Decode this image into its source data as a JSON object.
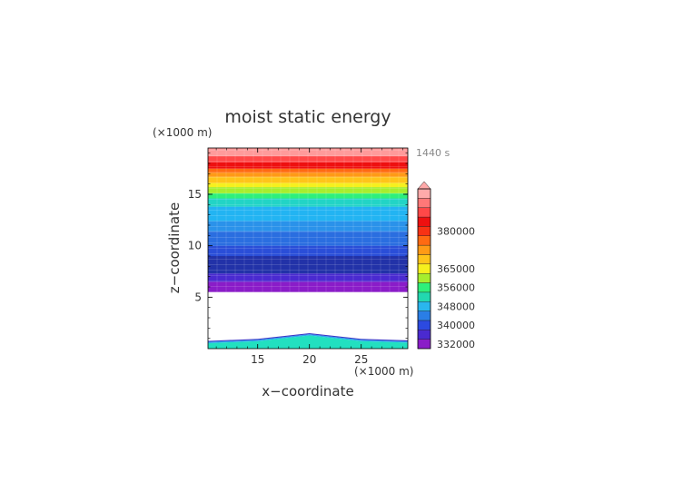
{
  "chart_data": {
    "type": "heatmap",
    "title": "moist static energy",
    "time_label": "1440 s",
    "xlabel": "x−coordinate",
    "ylabel": "z−coordinate",
    "x_unit": "(×1000 m)",
    "y_unit": "(×1000 m)",
    "xlim": [
      10.2,
      29.5
    ],
    "ylim": [
      0,
      19.5
    ],
    "x_ticks": [
      15,
      20,
      25
    ],
    "x_tick_labels": [
      "15",
      "20",
      "25"
    ],
    "y_ticks": [
      5,
      10,
      15
    ],
    "y_tick_labels": [
      "5",
      "10",
      "15"
    ],
    "colorbar": {
      "colors": [
        "#8a1cc8",
        "#4a2ad0",
        "#2c4ae0",
        "#2a7ee6",
        "#2ab6ee",
        "#22d8b0",
        "#2ef07a",
        "#a6ee2e",
        "#f6f01e",
        "#ffc41a",
        "#ff9a16",
        "#ff6a12",
        "#f83214",
        "#ee1010",
        "#ff4848",
        "#ff7878",
        "#ffaaaa"
      ],
      "labels": [
        "332000",
        "340000",
        "348000",
        "356000",
        "365000",
        "380000"
      ],
      "label_positions": [
        0.5,
        2.5,
        4.5,
        6.5,
        8.5,
        12.5
      ],
      "extend_top": true
    },
    "upper_layer": {
      "z_range": [
        5.5,
        19.5
      ],
      "bands": [
        {
          "z": [
            5.5,
            6.5
          ],
          "color": "#8a1cc8"
        },
        {
          "z": [
            6.5,
            7.3
          ],
          "color": "#4a2ad0"
        },
        {
          "z": [
            7.3,
            9.0
          ],
          "color": "#2232a8"
        },
        {
          "z": [
            9.0,
            10.0
          ],
          "color": "#2a4ed8"
        },
        {
          "z": [
            10.0,
            11.4
          ],
          "color": "#2a6ee0"
        },
        {
          "z": [
            11.4,
            12.4
          ],
          "color": "#2a92ea"
        },
        {
          "z": [
            12.4,
            13.8
          ],
          "color": "#22b4f2"
        },
        {
          "z": [
            13.8,
            14.6
          ],
          "color": "#22d4c6"
        },
        {
          "z": [
            14.6,
            15.1
          ],
          "color": "#2ef07a"
        },
        {
          "z": [
            15.1,
            15.7
          ],
          "color": "#a6ee2e"
        },
        {
          "z": [
            15.7,
            16.1
          ],
          "color": "#f6f01e"
        },
        {
          "z": [
            16.1,
            16.7
          ],
          "color": "#ffc41a"
        },
        {
          "z": [
            16.7,
            17.1
          ],
          "color": "#ff9a16"
        },
        {
          "z": [
            17.1,
            17.5
          ],
          "color": "#ff6a12"
        },
        {
          "z": [
            17.5,
            18.1
          ],
          "color": "#ee1010"
        },
        {
          "z": [
            18.1,
            18.7
          ],
          "color": "#ff4848"
        },
        {
          "z": [
            18.7,
            19.5
          ],
          "color": "#ff9a9a"
        }
      ]
    },
    "lower_layer": {
      "x": [
        10.2,
        15.0,
        20.0,
        25.0,
        29.5
      ],
      "top": [
        0.75,
        0.95,
        1.5,
        0.95,
        0.8
      ],
      "layers": [
        {
          "offset_base": 0.0,
          "offset_top": -0.22,
          "color": "#22e0c0"
        },
        {
          "offset_base": -0.22,
          "offset_top": -0.1,
          "color": "#2aa8ee"
        },
        {
          "offset_base": -0.1,
          "offset_top": 0.0,
          "color": "#3a38c8"
        }
      ]
    }
  }
}
